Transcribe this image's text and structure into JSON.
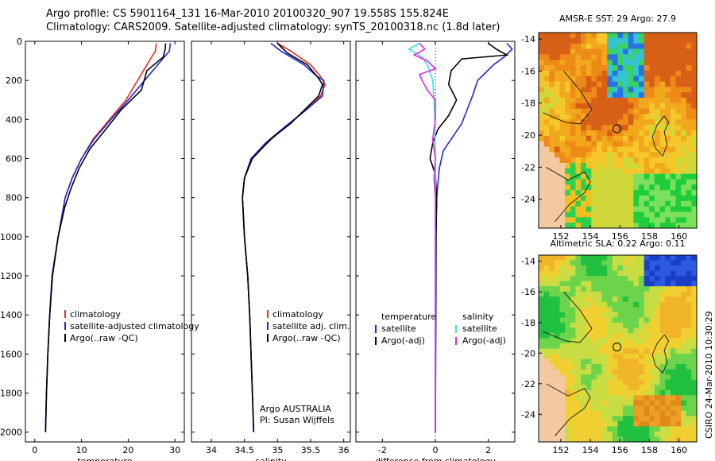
{
  "header": {
    "line1": "Argo profile: CS 5901164_131 16-Mar-2010 20100320_907 19.558S 155.824E",
    "line2": "Climatology: CARS2009. Satellite-adjusted climatology: synTS_20100318.nc (1.8d later)"
  },
  "side_label": "CSIRO 24-Mar-2010 10:30:29",
  "colors": {
    "clim": "#e8301e",
    "sat": "#1f2ad6",
    "argo": "#000000",
    "cyan": "#36e0ec",
    "magenta": "#e226e6"
  },
  "chart_data": [
    {
      "type": "line",
      "id": "temperature",
      "xlabel": "temperature",
      "xlim": [
        -2,
        32
      ],
      "ylim": [
        2050,
        0
      ],
      "xticks": [
        "0",
        "10",
        "20",
        "30"
      ],
      "xtick_values": [
        0,
        10,
        20,
        30
      ],
      "yticks": [
        "0",
        "200",
        "400",
        "600",
        "800",
        "1000",
        "1200",
        "1400",
        "1600",
        "1800",
        "2000"
      ],
      "ytick_values": [
        0,
        200,
        400,
        600,
        800,
        1000,
        1200,
        1400,
        1600,
        1800,
        2000
      ],
      "legend": [
        "climatology",
        "satellite-adjusted climatology",
        "Argo(..raw -QC)"
      ],
      "series": [
        {
          "name": "climatology",
          "color": "clim",
          "points": [
            [
              26,
              10
            ],
            [
              25.8,
              50
            ],
            [
              24.5,
              100
            ],
            [
              22,
              200
            ],
            [
              19.5,
              300
            ],
            [
              16,
              400
            ],
            [
              12.5,
              500
            ],
            [
              10,
              600
            ],
            [
              8,
              700
            ],
            [
              6.5,
              800
            ],
            [
              5,
              1000
            ],
            [
              3.7,
              1200
            ],
            [
              3.2,
              1400
            ],
            [
              2.8,
              1600
            ],
            [
              2.5,
              1800
            ],
            [
              2.3,
              2000
            ]
          ]
        },
        {
          "name": "satellite-adjusted climatology",
          "color": "sat",
          "points": [
            [
              29,
              10
            ],
            [
              28.8,
              50
            ],
            [
              27,
              100
            ],
            [
              23.5,
              200
            ],
            [
              20,
              300
            ],
            [
              16.3,
              400
            ],
            [
              12.7,
              500
            ],
            [
              10,
              600
            ],
            [
              8,
              700
            ],
            [
              6.5,
              800
            ],
            [
              5,
              1000
            ],
            [
              3.7,
              1200
            ],
            [
              3.2,
              1400
            ],
            [
              2.8,
              1600
            ],
            [
              2.5,
              1800
            ],
            [
              2.3,
              2000
            ]
          ]
        },
        {
          "name": "Argo(..raw -QC)",
          "color": "argo",
          "points": [
            [
              28,
              10
            ],
            [
              27.9,
              40
            ],
            [
              27.5,
              80
            ],
            [
              24,
              150
            ],
            [
              22.8,
              250
            ],
            [
              18.5,
              350
            ],
            [
              15.2,
              450
            ],
            [
              11.8,
              550
            ],
            [
              9.5,
              650
            ],
            [
              7.8,
              750
            ],
            [
              6.4,
              850
            ],
            [
              5,
              1000
            ],
            [
              3.8,
              1200
            ],
            [
              3.2,
              1400
            ],
            [
              2.8,
              1600
            ],
            [
              2.5,
              1800
            ],
            [
              2.3,
              2000
            ]
          ]
        }
      ]
    },
    {
      "type": "line",
      "id": "salinity",
      "xlabel": "salinity",
      "xlim": [
        33.7,
        36.1
      ],
      "ylim": [
        2050,
        0
      ],
      "xticks": [
        "34",
        "34.5",
        "35",
        "35.5",
        "36"
      ],
      "xtick_values": [
        34,
        34.5,
        35,
        35.5,
        36
      ],
      "legend": [
        "climatology",
        "satellite adj. clim.",
        "Argo(..raw -QC)"
      ],
      "annotation": [
        "Argo AUSTRALIA",
        "PI: Susan Wijffels"
      ],
      "series": [
        {
          "name": "climatology",
          "color": "clim",
          "points": [
            [
              35.0,
              10
            ],
            [
              35.2,
              50
            ],
            [
              35.5,
              120
            ],
            [
              35.65,
              180
            ],
            [
              35.72,
              220
            ],
            [
              35.65,
              280
            ],
            [
              35.4,
              360
            ],
            [
              35.1,
              440
            ],
            [
              34.85,
              520
            ],
            [
              34.6,
              600
            ],
            [
              34.5,
              700
            ],
            [
              34.47,
              800
            ],
            [
              34.5,
              1000
            ],
            [
              34.55,
              1200
            ],
            [
              34.58,
              1400
            ],
            [
              34.6,
              1600
            ],
            [
              34.62,
              1800
            ],
            [
              34.64,
              2000
            ]
          ]
        },
        {
          "name": "satellite adj. clim.",
          "color": "sat",
          "points": [
            [
              34.9,
              10
            ],
            [
              35.05,
              50
            ],
            [
              35.4,
              120
            ],
            [
              35.6,
              180
            ],
            [
              35.7,
              200
            ],
            [
              35.68,
              280
            ],
            [
              35.4,
              360
            ],
            [
              35.1,
              440
            ],
            [
              34.82,
              520
            ],
            [
              34.6,
              600
            ],
            [
              34.5,
              700
            ],
            [
              34.47,
              800
            ],
            [
              34.5,
              1000
            ],
            [
              34.55,
              1200
            ],
            [
              34.58,
              1400
            ],
            [
              34.6,
              1600
            ],
            [
              34.62,
              1800
            ],
            [
              34.64,
              2000
            ]
          ]
        },
        {
          "name": "Argo(..raw -QC)",
          "color": "argo",
          "points": [
            [
              35.0,
              10
            ],
            [
              35.15,
              60
            ],
            [
              35.45,
              120
            ],
            [
              35.6,
              180
            ],
            [
              35.68,
              220
            ],
            [
              35.62,
              280
            ],
            [
              35.38,
              360
            ],
            [
              35.2,
              420
            ],
            [
              34.9,
              500
            ],
            [
              34.62,
              600
            ],
            [
              34.5,
              700
            ],
            [
              34.47,
              800
            ],
            [
              34.5,
              1000
            ],
            [
              34.55,
              1200
            ],
            [
              34.58,
              1400
            ],
            [
              34.6,
              1600
            ],
            [
              34.62,
              1800
            ],
            [
              34.64,
              2000
            ]
          ]
        }
      ]
    },
    {
      "type": "line",
      "id": "difference",
      "xlabel": "difference from climatology",
      "xlim": [
        -3,
        3
      ],
      "ylim": [
        2050,
        0
      ],
      "xticks": [
        "-2",
        "0",
        "2"
      ],
      "xtick_values": [
        -2,
        0,
        2
      ],
      "legend_left_title": "temperature",
      "legend_left": [
        "satellite",
        "Argo(-adj)"
      ],
      "legend_right_title": "salinity",
      "legend_right": [
        "satellite",
        "Argo(-adj)"
      ],
      "series": [
        {
          "name": "temperature satellite",
          "color": "sat",
          "points": [
            [
              2.7,
              10
            ],
            [
              2.9,
              40
            ],
            [
              2.6,
              80
            ],
            [
              2.2,
              120
            ],
            [
              1.6,
              200
            ],
            [
              1.4,
              280
            ],
            [
              1.2,
              350
            ],
            [
              1.0,
              420
            ],
            [
              0.6,
              500
            ],
            [
              0.3,
              560
            ],
            [
              0.15,
              650
            ],
            [
              0.05,
              800
            ],
            [
              0.03,
              1000
            ],
            [
              0.02,
              1400
            ],
            [
              0.0,
              2000
            ]
          ]
        },
        {
          "name": "temperature Argo(-adj)",
          "color": "argo",
          "points": [
            [
              2.0,
              10
            ],
            [
              2.3,
              40
            ],
            [
              2.7,
              70
            ],
            [
              1.0,
              90
            ],
            [
              0.6,
              150
            ],
            [
              0.5,
              220
            ],
            [
              0.8,
              300
            ],
            [
              0.5,
              380
            ],
            [
              0.1,
              450
            ],
            [
              -0.1,
              520
            ],
            [
              -0.2,
              600
            ],
            [
              0.0,
              680
            ],
            [
              0.05,
              800
            ],
            [
              0.02,
              1000
            ],
            [
              0.01,
              1400
            ],
            [
              0.0,
              2000
            ]
          ]
        },
        {
          "name": "salinity satellite",
          "color": "cyan",
          "points": [
            [
              -0.6,
              10
            ],
            [
              -1.0,
              40
            ],
            [
              -0.5,
              80
            ],
            [
              -0.3,
              120
            ],
            [
              -0.1,
              200
            ],
            [
              -0.05,
              300
            ],
            [
              -0.02,
              400
            ],
            [
              0.0,
              600
            ],
            [
              0.0,
              1000
            ],
            [
              0.0,
              1400
            ],
            [
              0.0,
              2000
            ]
          ]
        },
        {
          "name": "salinity Argo(-adj)",
          "color": "magenta",
          "points": [
            [
              -0.6,
              10
            ],
            [
              -0.4,
              40
            ],
            [
              -0.8,
              70
            ],
            [
              -0.3,
              100
            ],
            [
              0.0,
              140
            ],
            [
              -0.6,
              170
            ],
            [
              -0.5,
              200
            ],
            [
              -0.3,
              250
            ],
            [
              0.0,
              300
            ],
            [
              0.0,
              400
            ],
            [
              -0.1,
              500
            ],
            [
              0.0,
              600
            ],
            [
              -0.05,
              700
            ],
            [
              0.0,
              800
            ],
            [
              0.0,
              1000
            ],
            [
              0.0,
              2000
            ]
          ]
        }
      ]
    },
    {
      "type": "heatmap",
      "id": "sst-map",
      "title": "AMSR-E SST: 29 Argo: 27.9",
      "xticks": [
        "152",
        "154",
        "156",
        "158",
        "160"
      ],
      "xtick_values": [
        152,
        154,
        156,
        158,
        160
      ],
      "yticks": [
        "-14",
        "-16",
        "-18",
        "-20",
        "-22",
        "-24"
      ],
      "ytick_values": [
        -14,
        -16,
        -18,
        -20,
        -22,
        -24
      ],
      "xlim": [
        150.5,
        161.2
      ],
      "ylim": [
        -25.8,
        -13.6
      ],
      "argo_position": [
        155.8,
        -19.6
      ]
    },
    {
      "type": "heatmap",
      "id": "sla-map",
      "title": "Altimetric SLA: 0.22 Argo: 0.11",
      "xticks": [
        "152",
        "154",
        "156",
        "158",
        "160"
      ],
      "xtick_values": [
        152,
        154,
        156,
        158,
        160
      ],
      "yticks": [
        "-14",
        "-16",
        "-18",
        "-20",
        "-22",
        "-24"
      ],
      "ytick_values": [
        -14,
        -16,
        -18,
        -20,
        -22,
        -24
      ],
      "xlim": [
        150.5,
        161.2
      ],
      "ylim": [
        -25.8,
        -13.6
      ],
      "argo_position": [
        155.8,
        -19.6
      ]
    }
  ]
}
